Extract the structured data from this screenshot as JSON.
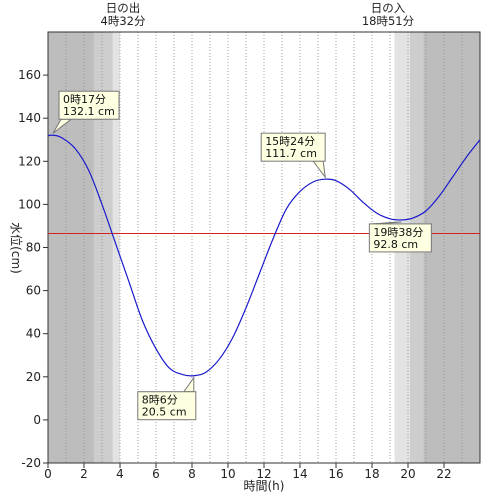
{
  "chart_data": {
    "type": "line",
    "xlabel": "時間(h)",
    "ylabel": "水位(cm)",
    "xlim": [
      0,
      24
    ],
    "ylim": [
      -20,
      180
    ],
    "x_ticks": [
      0,
      2,
      4,
      6,
      8,
      10,
      12,
      14,
      16,
      18,
      20,
      22
    ],
    "y_ticks": [
      -20,
      0,
      20,
      40,
      60,
      80,
      100,
      120,
      140,
      160
    ],
    "grid": "vertical dotted every hour",
    "reference_level": 86.5,
    "colors": {
      "line": "#1a1acc",
      "reference": "#d22222"
    },
    "sun": {
      "sunrise": {
        "label": "日の出",
        "time": "4時32分",
        "hour": 4.53
      },
      "sunset": {
        "label": "日の入",
        "time": "18時51分",
        "hour": 18.85
      },
      "twilight_minutes": 30,
      "night_band_hours": [
        [
          0,
          2.55
        ],
        [
          20.85,
          24
        ]
      ],
      "dim_band_hours": [
        [
          2.55,
          3.6
        ],
        [
          20.1,
          20.85
        ]
      ],
      "twilight_band_hours": [
        [
          3.6,
          4.0
        ],
        [
          19.25,
          20.1
        ]
      ]
    },
    "series": [
      {
        "x": [
          0,
          0.28,
          0.75,
          1.5,
          2.25,
          3,
          3.75,
          4.5,
          5.25,
          6,
          6.75,
          7.5,
          8.1,
          8.75,
          9.5,
          10.25,
          11,
          11.75,
          12.5,
          13.25,
          14,
          14.75,
          15.4,
          16,
          16.75,
          17.5,
          18.25,
          19,
          19.63,
          20.25,
          21,
          21.75,
          22.5,
          23.25,
          24
        ],
        "values": [
          131.9,
          132.1,
          131,
          126,
          116,
          100,
          82,
          64,
          46,
          33,
          24,
          21,
          20.5,
          22,
          28,
          38,
          52,
          68,
          84,
          98,
          106,
          110.5,
          111.7,
          111,
          107,
          101,
          96,
          93.3,
          92.8,
          93.6,
          97,
          104,
          113,
          122,
          130
        ]
      }
    ],
    "annotations": [
      {
        "time": "0時17分",
        "value": "132.1 cm",
        "x": 0.28,
        "y": 132.1
      },
      {
        "time": "8時6分",
        "value": "20.5 cm",
        "x": 8.1,
        "y": 20.5
      },
      {
        "time": "15時24分",
        "value": "111.7 cm",
        "x": 15.4,
        "y": 111.7
      },
      {
        "time": "19時38分",
        "value": "92.8 cm",
        "x": 19.63,
        "y": 92.8
      }
    ]
  }
}
